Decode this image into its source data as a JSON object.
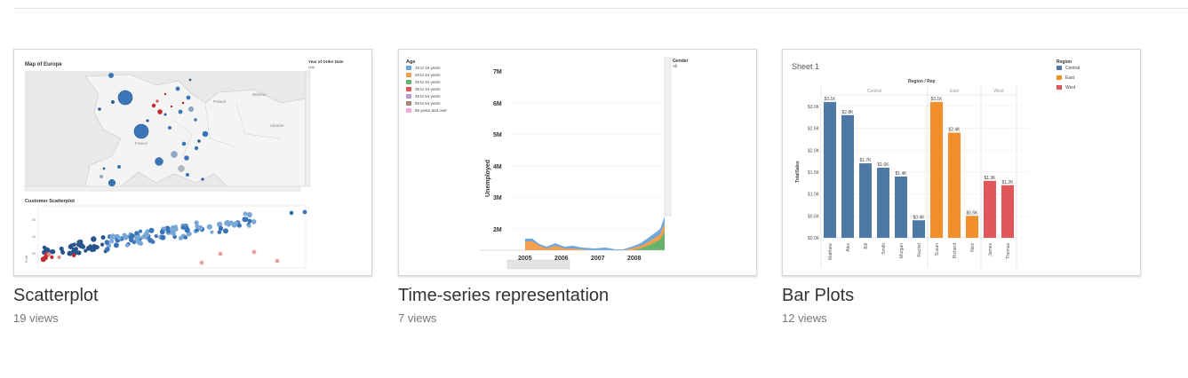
{
  "cards": [
    {
      "title": "Scatterplot",
      "views": "19 views",
      "map_title": "Map of Europe",
      "map_filter_title": "Year of Order Date",
      "map_filter_value": "(All)",
      "country_labels": [
        "Poland",
        "Belarus",
        "Ukraine",
        "France"
      ],
      "scatter_title": "Customer Scatterplot",
      "scatter_ylabel": "Profit",
      "scatter_yticks": [
        "2K",
        "1K",
        "0K"
      ]
    },
    {
      "title": "Time-series representation",
      "views": "7 views",
      "legend_title": "Age",
      "age_groups": [
        {
          "label": "16 to 19 years",
          "color": "#6fa8dc"
        },
        {
          "label": "20 to 24 years",
          "color": "#f6a04d"
        },
        {
          "label": "25 to 34 years",
          "color": "#66b36b"
        },
        {
          "label": "35 to 44 years",
          "color": "#e15759"
        },
        {
          "label": "45 to 54 years",
          "color": "#b79ad6"
        },
        {
          "label": "55 to 64 years",
          "color": "#a8877b"
        },
        {
          "label": "65 years and over",
          "color": "#f0a9d8"
        }
      ],
      "gender_title": "Gender",
      "gender_value": "All",
      "ylabel": "Unemployed",
      "yticks": [
        "7M",
        "6M",
        "5M",
        "4M",
        "3M",
        "2M"
      ],
      "xticks": [
        "2005",
        "2006",
        "2007",
        "2008"
      ]
    },
    {
      "title": "Bar Plots",
      "views": "12 views",
      "chart_data": {
        "type": "bar",
        "title": "Sheet 1",
        "header": "Region / Rep",
        "ylabel": "TotalSales",
        "yticks": [
          "$0.0K",
          "$0.5K",
          "$1.0K",
          "$1.5K",
          "$2.0K",
          "$2.5K",
          "$3.0K"
        ],
        "ylim": [
          0,
          3.2
        ],
        "legend_title": "Region",
        "regions": [
          {
            "name": "Central",
            "color": "#4e79a7"
          },
          {
            "name": "East",
            "color": "#f28e2b"
          },
          {
            "name": "West",
            "color": "#e15759"
          }
        ],
        "bars": [
          {
            "rep": "Matthew",
            "region": "Central",
            "value": 3.1,
            "label": "$3.1K"
          },
          {
            "rep": "Alex",
            "region": "Central",
            "value": 2.8,
            "label": "$2.8K"
          },
          {
            "rep": "Bill",
            "region": "Central",
            "value": 1.7,
            "label": "$1.7K"
          },
          {
            "rep": "Smith",
            "region": "Central",
            "value": 1.6,
            "label": "$1.6K"
          },
          {
            "rep": "Morgan",
            "region": "Central",
            "value": 1.4,
            "label": "$1.4K"
          },
          {
            "rep": "Rachel",
            "region": "Central",
            "value": 0.4,
            "label": "$0.4K"
          },
          {
            "rep": "Susan",
            "region": "East",
            "value": 3.1,
            "label": "$3.1K"
          },
          {
            "rep": "Richard",
            "region": "East",
            "value": 2.4,
            "label": "$2.4K"
          },
          {
            "rep": "Nick",
            "region": "East",
            "value": 0.5,
            "label": "$0.5K"
          },
          {
            "rep": "James",
            "region": "West",
            "value": 1.3,
            "label": "$1.3K"
          },
          {
            "rep": "Thomas",
            "region": "West",
            "value": 1.2,
            "label": "$1.2K"
          }
        ]
      }
    }
  ]
}
